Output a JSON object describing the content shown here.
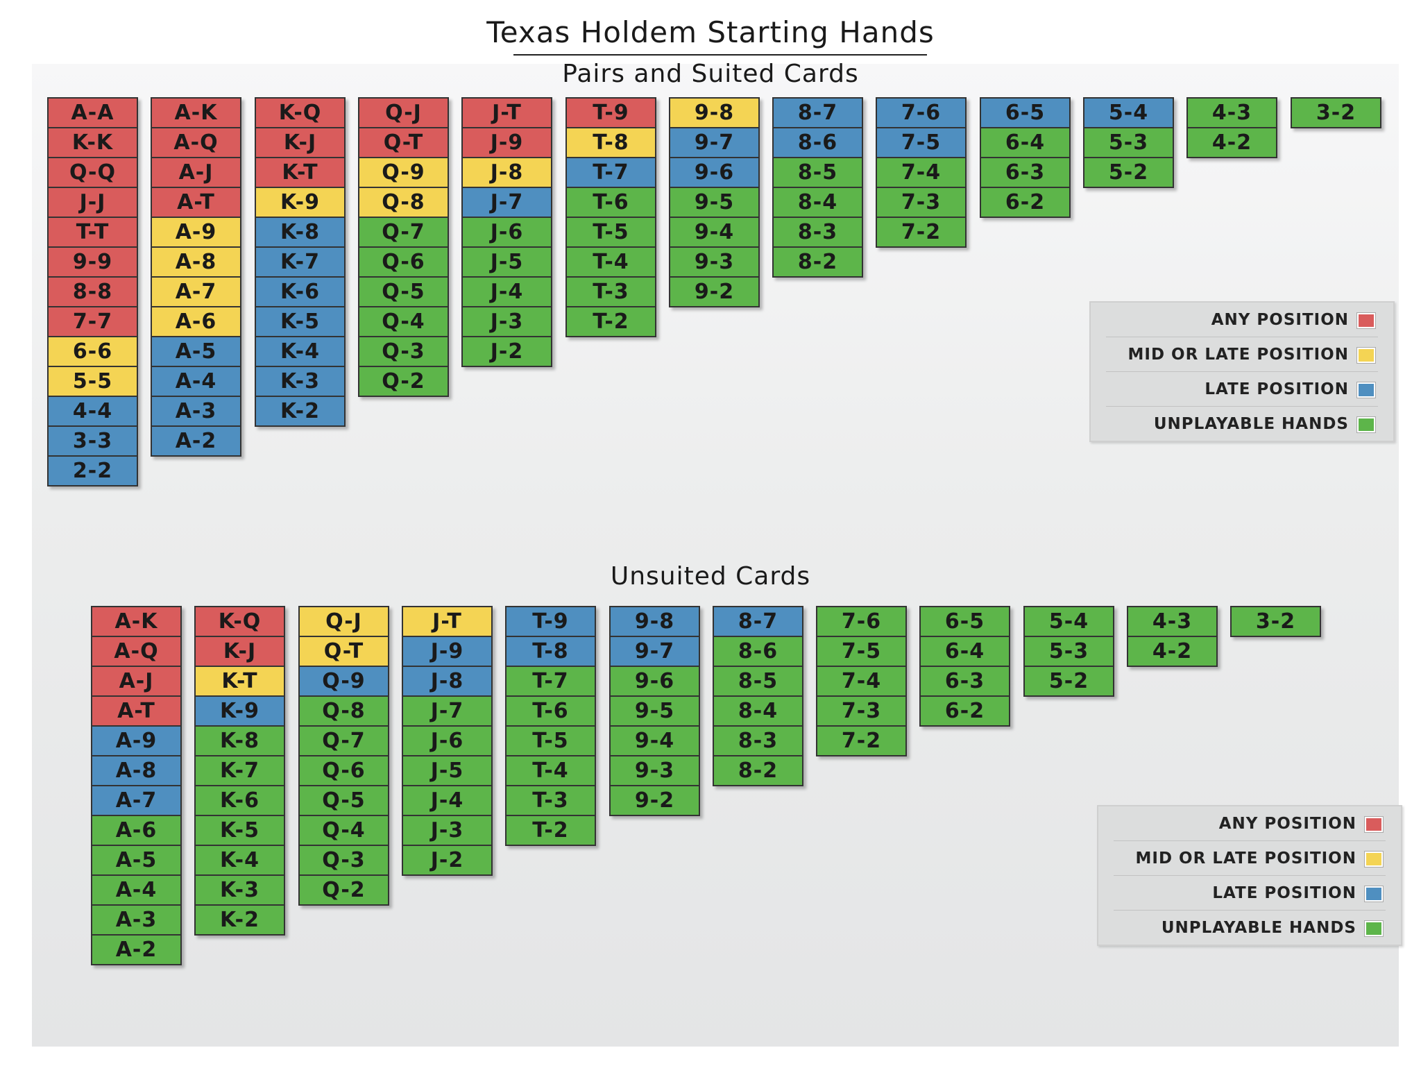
{
  "title": "Texas Holdem Starting Hands",
  "colors": {
    "any": "#d95c5c",
    "mid": "#f4d454",
    "late": "#4f8fc0",
    "unplayable": "#5db54a"
  },
  "sections": [
    {
      "title": "Pairs and Suited Cards",
      "columns": [
        [
          [
            "A-A",
            "any"
          ],
          [
            "K-K",
            "any"
          ],
          [
            "Q-Q",
            "any"
          ],
          [
            "J-J",
            "any"
          ],
          [
            "T-T",
            "any"
          ],
          [
            "9-9",
            "any"
          ],
          [
            "8-8",
            "any"
          ],
          [
            "7-7",
            "any"
          ],
          [
            "6-6",
            "mid"
          ],
          [
            "5-5",
            "mid"
          ],
          [
            "4-4",
            "late"
          ],
          [
            "3-3",
            "late"
          ],
          [
            "2-2",
            "late"
          ]
        ],
        [
          [
            "A-K",
            "any"
          ],
          [
            "A-Q",
            "any"
          ],
          [
            "A-J",
            "any"
          ],
          [
            "A-T",
            "any"
          ],
          [
            "A-9",
            "mid"
          ],
          [
            "A-8",
            "mid"
          ],
          [
            "A-7",
            "mid"
          ],
          [
            "A-6",
            "mid"
          ],
          [
            "A-5",
            "late"
          ],
          [
            "A-4",
            "late"
          ],
          [
            "A-3",
            "late"
          ],
          [
            "A-2",
            "late"
          ]
        ],
        [
          [
            "K-Q",
            "any"
          ],
          [
            "K-J",
            "any"
          ],
          [
            "K-T",
            "any"
          ],
          [
            "K-9",
            "mid"
          ],
          [
            "K-8",
            "late"
          ],
          [
            "K-7",
            "late"
          ],
          [
            "K-6",
            "late"
          ],
          [
            "K-5",
            "late"
          ],
          [
            "K-4",
            "late"
          ],
          [
            "K-3",
            "late"
          ],
          [
            "K-2",
            "late"
          ]
        ],
        [
          [
            "Q-J",
            "any"
          ],
          [
            "Q-T",
            "any"
          ],
          [
            "Q-9",
            "mid"
          ],
          [
            "Q-8",
            "mid"
          ],
          [
            "Q-7",
            "unplayable"
          ],
          [
            "Q-6",
            "unplayable"
          ],
          [
            "Q-5",
            "unplayable"
          ],
          [
            "Q-4",
            "unplayable"
          ],
          [
            "Q-3",
            "unplayable"
          ],
          [
            "Q-2",
            "unplayable"
          ]
        ],
        [
          [
            "J-T",
            "any"
          ],
          [
            "J-9",
            "any"
          ],
          [
            "J-8",
            "mid"
          ],
          [
            "J-7",
            "late"
          ],
          [
            "J-6",
            "unplayable"
          ],
          [
            "J-5",
            "unplayable"
          ],
          [
            "J-4",
            "unplayable"
          ],
          [
            "J-3",
            "unplayable"
          ],
          [
            "J-2",
            "unplayable"
          ]
        ],
        [
          [
            "T-9",
            "any"
          ],
          [
            "T-8",
            "mid"
          ],
          [
            "T-7",
            "late"
          ],
          [
            "T-6",
            "unplayable"
          ],
          [
            "T-5",
            "unplayable"
          ],
          [
            "T-4",
            "unplayable"
          ],
          [
            "T-3",
            "unplayable"
          ],
          [
            "T-2",
            "unplayable"
          ]
        ],
        [
          [
            "9-8",
            "mid"
          ],
          [
            "9-7",
            "late"
          ],
          [
            "9-6",
            "late"
          ],
          [
            "9-5",
            "unplayable"
          ],
          [
            "9-4",
            "unplayable"
          ],
          [
            "9-3",
            "unplayable"
          ],
          [
            "9-2",
            "unplayable"
          ]
        ],
        [
          [
            "8-7",
            "late"
          ],
          [
            "8-6",
            "late"
          ],
          [
            "8-5",
            "unplayable"
          ],
          [
            "8-4",
            "unplayable"
          ],
          [
            "8-3",
            "unplayable"
          ],
          [
            "8-2",
            "unplayable"
          ]
        ],
        [
          [
            "7-6",
            "late"
          ],
          [
            "7-5",
            "late"
          ],
          [
            "7-4",
            "unplayable"
          ],
          [
            "7-3",
            "unplayable"
          ],
          [
            "7-2",
            "unplayable"
          ]
        ],
        [
          [
            "6-5",
            "late"
          ],
          [
            "6-4",
            "unplayable"
          ],
          [
            "6-3",
            "unplayable"
          ],
          [
            "6-2",
            "unplayable"
          ]
        ],
        [
          [
            "5-4",
            "late"
          ],
          [
            "5-3",
            "unplayable"
          ],
          [
            "5-2",
            "unplayable"
          ]
        ],
        [
          [
            "4-3",
            "unplayable"
          ],
          [
            "4-2",
            "unplayable"
          ]
        ],
        [
          [
            "3-2",
            "unplayable"
          ]
        ]
      ],
      "legend": [
        {
          "label": "ANY POSITION",
          "key": "any"
        },
        {
          "label": "MID OR LATE POSITION",
          "key": "mid"
        },
        {
          "label": "LATE POSITION",
          "key": "late"
        },
        {
          "label": "UNPLAYABLE HANDS",
          "key": "unplayable"
        }
      ]
    },
    {
      "title": "Unsuited Cards",
      "columns": [
        [
          [
            "A-K",
            "any"
          ],
          [
            "A-Q",
            "any"
          ],
          [
            "A-J",
            "any"
          ],
          [
            "A-T",
            "any"
          ],
          [
            "A-9",
            "late"
          ],
          [
            "A-8",
            "late"
          ],
          [
            "A-7",
            "late"
          ],
          [
            "A-6",
            "unplayable"
          ],
          [
            "A-5",
            "unplayable"
          ],
          [
            "A-4",
            "unplayable"
          ],
          [
            "A-3",
            "unplayable"
          ],
          [
            "A-2",
            "unplayable"
          ]
        ],
        [
          [
            "K-Q",
            "any"
          ],
          [
            "K-J",
            "any"
          ],
          [
            "K-T",
            "mid"
          ],
          [
            "K-9",
            "late"
          ],
          [
            "K-8",
            "unplayable"
          ],
          [
            "K-7",
            "unplayable"
          ],
          [
            "K-6",
            "unplayable"
          ],
          [
            "K-5",
            "unplayable"
          ],
          [
            "K-4",
            "unplayable"
          ],
          [
            "K-3",
            "unplayable"
          ],
          [
            "K-2",
            "unplayable"
          ]
        ],
        [
          [
            "Q-J",
            "mid"
          ],
          [
            "Q-T",
            "mid"
          ],
          [
            "Q-9",
            "late"
          ],
          [
            "Q-8",
            "unplayable"
          ],
          [
            "Q-7",
            "unplayable"
          ],
          [
            "Q-6",
            "unplayable"
          ],
          [
            "Q-5",
            "unplayable"
          ],
          [
            "Q-4",
            "unplayable"
          ],
          [
            "Q-3",
            "unplayable"
          ],
          [
            "Q-2",
            "unplayable"
          ]
        ],
        [
          [
            "J-T",
            "mid"
          ],
          [
            "J-9",
            "late"
          ],
          [
            "J-8",
            "late"
          ],
          [
            "J-7",
            "unplayable"
          ],
          [
            "J-6",
            "unplayable"
          ],
          [
            "J-5",
            "unplayable"
          ],
          [
            "J-4",
            "unplayable"
          ],
          [
            "J-3",
            "unplayable"
          ],
          [
            "J-2",
            "unplayable"
          ]
        ],
        [
          [
            "T-9",
            "late"
          ],
          [
            "T-8",
            "late"
          ],
          [
            "T-7",
            "unplayable"
          ],
          [
            "T-6",
            "unplayable"
          ],
          [
            "T-5",
            "unplayable"
          ],
          [
            "T-4",
            "unplayable"
          ],
          [
            "T-3",
            "unplayable"
          ],
          [
            "T-2",
            "unplayable"
          ]
        ],
        [
          [
            "9-8",
            "late"
          ],
          [
            "9-7",
            "late"
          ],
          [
            "9-6",
            "unplayable"
          ],
          [
            "9-5",
            "unplayable"
          ],
          [
            "9-4",
            "unplayable"
          ],
          [
            "9-3",
            "unplayable"
          ],
          [
            "9-2",
            "unplayable"
          ]
        ],
        [
          [
            "8-7",
            "late"
          ],
          [
            "8-6",
            "unplayable"
          ],
          [
            "8-5",
            "unplayable"
          ],
          [
            "8-4",
            "unplayable"
          ],
          [
            "8-3",
            "unplayable"
          ],
          [
            "8-2",
            "unplayable"
          ]
        ],
        [
          [
            "7-6",
            "unplayable"
          ],
          [
            "7-5",
            "unplayable"
          ],
          [
            "7-4",
            "unplayable"
          ],
          [
            "7-3",
            "unplayable"
          ],
          [
            "7-2",
            "unplayable"
          ]
        ],
        [
          [
            "6-5",
            "unplayable"
          ],
          [
            "6-4",
            "unplayable"
          ],
          [
            "6-3",
            "unplayable"
          ],
          [
            "6-2",
            "unplayable"
          ]
        ],
        [
          [
            "5-4",
            "unplayable"
          ],
          [
            "5-3",
            "unplayable"
          ],
          [
            "5-2",
            "unplayable"
          ]
        ],
        [
          [
            "4-3",
            "unplayable"
          ],
          [
            "4-2",
            "unplayable"
          ]
        ],
        [
          [
            "3-2",
            "unplayable"
          ]
        ]
      ],
      "legend": [
        {
          "label": "ANY POSITION",
          "key": "any"
        },
        {
          "label": "MID OR LATE POSITION",
          "key": "mid"
        },
        {
          "label": "LATE POSITION",
          "key": "late"
        },
        {
          "label": "UNPLAYABLE HANDS",
          "key": "unplayable"
        }
      ]
    }
  ]
}
